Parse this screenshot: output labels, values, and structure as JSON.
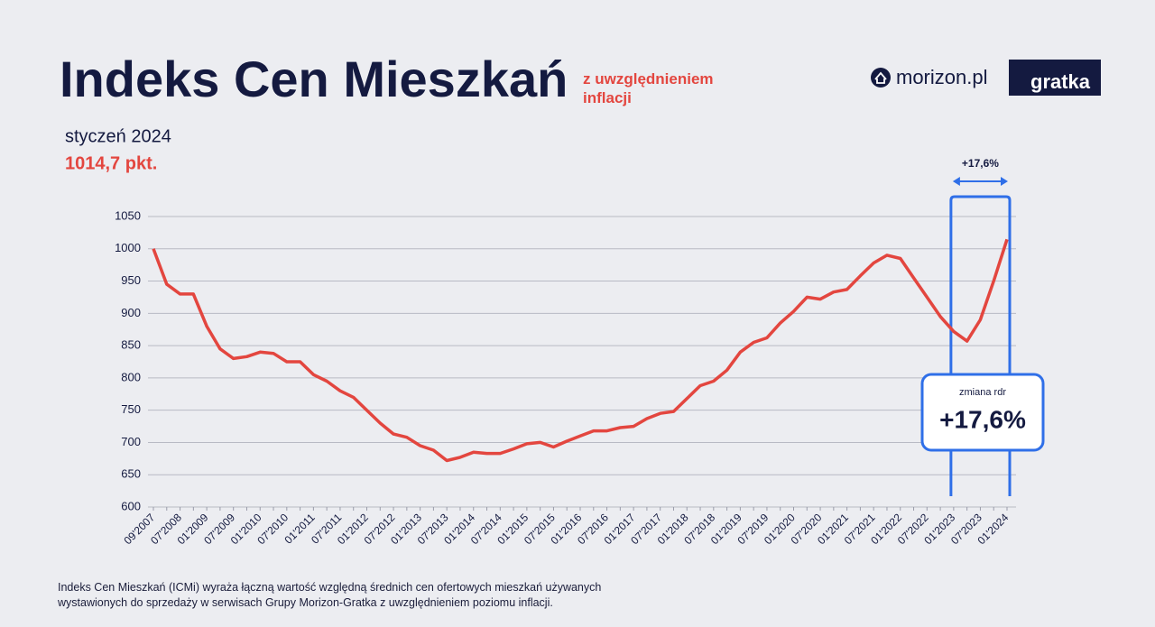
{
  "chart_data": {
    "type": "line",
    "title": "Indeks Cen Mieszkań",
    "subtitle": "z uwzględnieniem inflacji",
    "period_label": "styczeń 2024",
    "current_value_label": "1014,7 pkt.",
    "logos": [
      "morizon.pl",
      "gratka"
    ],
    "range_annotation": "+17,6%",
    "callout_title": "zmiana rdr",
    "callout_value": "+17,6%",
    "footnote": "Indeks Cen Mieszkań (ICMi) wyraża łączną wartość względną średnich cen ofertowych mieszkań używanych wystawionych do sprzedaży w serwisach Grupy Morizon-Gratka z uwzględnieniem poziomu inflacji.",
    "color": "#e3463f",
    "categories": [
      "09'2007",
      null,
      "07'2008",
      null,
      "01'2009",
      null,
      "07'2009",
      null,
      "01'2010",
      null,
      "07'2010",
      null,
      "01'2011",
      null,
      "07'2011",
      null,
      "01'2012",
      null,
      "07'2012",
      null,
      "01'2013",
      null,
      "07'2013",
      null,
      "01'2014",
      null,
      "07'2014",
      null,
      "01'2015",
      null,
      "07'2015",
      null,
      "01'2016",
      null,
      "07'2016",
      null,
      "01'2017",
      null,
      "07'2017",
      null,
      "01'2018",
      null,
      "07'2018",
      null,
      "01'2019",
      null,
      "07'2019",
      null,
      "01'2020",
      null,
      "07'2020",
      null,
      "01'2021",
      null,
      "07'2021",
      null,
      "01'2022",
      null,
      "07'2022",
      null,
      "01'2023",
      null,
      "07'2023",
      null,
      "01'2024"
    ],
    "values": [
      1000,
      945,
      930,
      930,
      880,
      845,
      830,
      833,
      840,
      838,
      825,
      825,
      805,
      795,
      780,
      770,
      750,
      730,
      713,
      708,
      695,
      688,
      672,
      677,
      685,
      683,
      683,
      690,
      698,
      700,
      693,
      702,
      710,
      718,
      718,
      723,
      725,
      737,
      745,
      748,
      768,
      788,
      795,
      812,
      840,
      855,
      862,
      885,
      903,
      925,
      922,
      933,
      937,
      958,
      978,
      990,
      985,
      955,
      925,
      895,
      872,
      857,
      890,
      950,
      1014.7
    ],
    "ylim": [
      600,
      1050
    ],
    "yticks": [
      600,
      650,
      700,
      750,
      800,
      850,
      900,
      950,
      1000,
      1050
    ],
    "grid": true
  }
}
